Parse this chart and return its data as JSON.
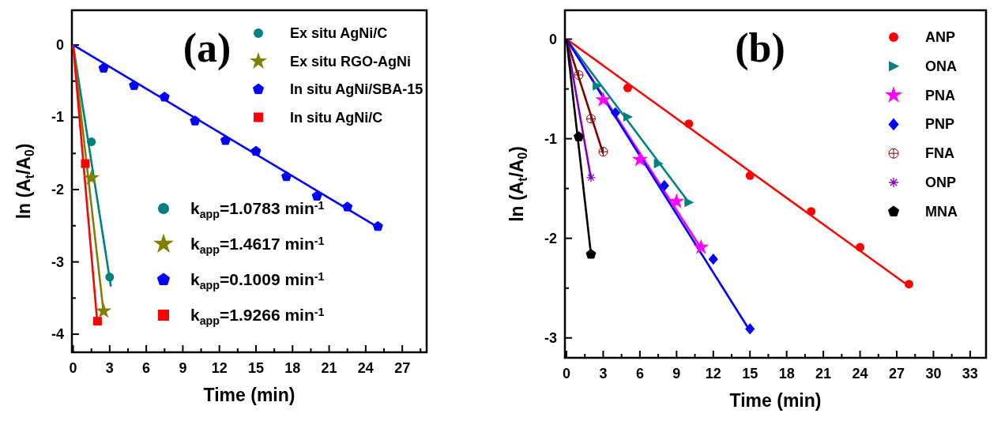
{
  "chart_data": [
    {
      "type": "scatter",
      "xlabel": "Time (min)",
      "ylabel": "ln (A$_{t}$/A$_{0}$)",
      "xlim": [
        -0.1,
        29
      ],
      "ylim": [
        -4.25,
        0.48
      ],
      "xticks": [
        0,
        {
          "value": 1.5,
          "label": null
        },
        3,
        {
          "value": 4.5,
          "label": null
        },
        6,
        {
          "value": 7.5,
          "label": null
        },
        9,
        {
          "value": 10.5,
          "label": null
        },
        12,
        {
          "value": 13.5,
          "label": null
        },
        15,
        {
          "value": 16.5,
          "label": null
        },
        18,
        {
          "value": 19.5,
          "label": null
        },
        21,
        {
          "value": 22.5,
          "label": null
        },
        24,
        {
          "value": 25.5,
          "label": null
        },
        27,
        {
          "value": 28.5,
          "label": null
        }
      ],
      "yticks": [
        0,
        {
          "value": -0.5,
          "label": null
        },
        -1,
        {
          "value": -1.5,
          "label": null
        },
        -2,
        {
          "value": -2.5,
          "label": null
        },
        -3,
        {
          "value": -3.5,
          "label": null
        },
        -4
      ],
      "grid": false,
      "legend": "top right",
      "annotations": [
        "(a)",
        "k$_{app}$=1.0783 min$^{-1}$",
        "k$_{app}$=1.4617 min$^{-1}$",
        "k$_{app}$=0.1009 min$^{-1}$",
        "k$_{app}$=1.9266 min$^{-1}$"
      ],
      "series": [
        {
          "name": "Ex situ AgNi/C",
          "type": "scatter",
          "marker": "circle",
          "color": "#008080",
          "x": [
            1.5,
            3
          ],
          "values": [
            -1.34,
            -3.21
          ]
        },
        {
          "name": "Ex situ RGO-AgNi",
          "type": "scatter",
          "marker": "star",
          "color": "#808000",
          "x": [
            1.5,
            2.5
          ],
          "values": [
            -1.84,
            -3.68
          ]
        },
        {
          "name": "In situ AgNi/SBA-15",
          "type": "scatter",
          "color": "#0000ff",
          "x": [
            2.5,
            5,
            7.5,
            10,
            12.5,
            15,
            17.5,
            20,
            22.5,
            25
          ],
          "values": [
            -0.32,
            -0.56,
            -0.72,
            -1.05,
            -1.32,
            -1.47,
            -1.82,
            -2.09,
            -2.24,
            -2.51
          ]
        },
        {
          "name": "In situ AgNi/C",
          "type": "scatter",
          "marker": "square",
          "color": "#ff0000",
          "x": [
            1,
            2
          ],
          "values": [
            -1.64,
            -3.82
          ]
        },
        {
          "type": "line",
          "line_style": "solid",
          "color": "#008080",
          "x": [
            0,
            3.1
          ],
          "values": [
            0,
            -3.34
          ]
        },
        {
          "type": "line",
          "line_style": "solid",
          "color": "#808000",
          "x": [
            0,
            2.5
          ],
          "values": [
            0,
            -3.7
          ]
        },
        {
          "type": "line",
          "line_style": "solid",
          "color": "#0000ff",
          "x": [
            0,
            25
          ],
          "values": [
            0,
            -2.52
          ]
        },
        {
          "type": "line",
          "line_style": "solid",
          "color": "#ff0000",
          "x": [
            0,
            2
          ],
          "values": [
            0,
            -3.87
          ]
        }
      ]
    },
    {
      "type": "scatter",
      "xlabel": "Time (min)",
      "ylabel": "ln (A$_{t}$/A$_{0}$)",
      "xlim": [
        -0.13,
        34.3
      ],
      "ylim": [
        -3.2,
        0.29
      ],
      "xticks": [
        0,
        {
          "value": 1.5,
          "label": null
        },
        3,
        {
          "value": 4.5,
          "label": null
        },
        6,
        {
          "value": 7.5,
          "label": null
        },
        9,
        {
          "value": 10.5,
          "label": null
        },
        12,
        {
          "value": 13.5,
          "label": null
        },
        15,
        {
          "value": 16.5,
          "label": null
        },
        18,
        {
          "value": 19.5,
          "label": null
        },
        21,
        {
          "value": 22.5,
          "label": null
        },
        24,
        {
          "value": 25.5,
          "label": null
        },
        27,
        {
          "value": 28.5,
          "label": null
        },
        30,
        {
          "value": 31.5,
          "label": null
        },
        33
      ],
      "yticks": [
        0,
        {
          "value": -0.5,
          "label": null
        },
        -1,
        {
          "value": -1.5,
          "label": null
        },
        -2,
        {
          "value": -2.5,
          "label": null
        },
        -3
      ],
      "grid": false,
      "legend": "top right",
      "annotations": [
        "(b)"
      ],
      "series": [
        {
          "name": "ANP",
          "type": "scatter",
          "marker": "circle",
          "color": "#ff0000",
          "x": [
            5,
            10,
            15,
            20,
            24,
            28
          ],
          "values": [
            -0.49,
            -0.85,
            -1.37,
            -1.73,
            -2.09,
            -2.46
          ]
        },
        {
          "name": "ONA",
          "type": "scatter",
          "marker": "triangle",
          "color": "#008080",
          "x": [
            2.5,
            5,
            7.5,
            10
          ],
          "values": [
            -0.47,
            -0.78,
            -1.25,
            -1.64
          ]
        },
        {
          "name": "PNA",
          "type": "scatter",
          "marker": "star",
          "color": "#ff00ff",
          "x": [
            3,
            6,
            9,
            11
          ],
          "values": [
            -0.61,
            -1.21,
            -1.63,
            -2.09
          ]
        },
        {
          "name": "PNP",
          "type": "scatter",
          "marker": "diamond",
          "color": "#0000ff",
          "x": [
            4,
            8,
            12,
            15
          ],
          "values": [
            -0.74,
            -1.47,
            -2.21,
            -2.91
          ]
        },
        {
          "name": "FNA",
          "type": "scatter",
          "marker": "cross",
          "color": "#800000",
          "x": [
            1,
            2,
            3
          ],
          "values": [
            -0.36,
            -0.8,
            -1.13
          ]
        },
        {
          "name": "ONP",
          "type": "scatter",
          "color": "#8000c0",
          "x": [
            2
          ],
          "values": [
            -1.39
          ]
        },
        {
          "name": "MNA",
          "type": "scatter",
          "color": "#000000",
          "x": [
            1,
            2
          ],
          "values": [
            -0.98,
            -2.16
          ]
        },
        {
          "type": "line",
          "line_style": "solid",
          "color": "#ff0000",
          "x": [
            0,
            28
          ],
          "values": [
            0,
            -2.48
          ]
        },
        {
          "type": "line",
          "line_style": "solid",
          "color": "#008080",
          "x": [
            0,
            10
          ],
          "values": [
            0,
            -1.64
          ]
        },
        {
          "type": "line",
          "line_style": "solid",
          "color": "#ff00ff",
          "x": [
            0,
            11
          ],
          "values": [
            0,
            -2.1
          ]
        },
        {
          "type": "line",
          "line_style": "solid",
          "color": "#0000ff",
          "x": [
            0,
            15
          ],
          "values": [
            0,
            -2.93
          ]
        },
        {
          "type": "line",
          "line_style": "solid",
          "color": "#800000",
          "x": [
            0,
            3
          ],
          "values": [
            0,
            -1.15
          ]
        },
        {
          "type": "line",
          "line_style": "solid",
          "color": "#8000c0",
          "x": [
            0,
            2
          ],
          "values": [
            0,
            -1.4
          ]
        },
        {
          "type": "line",
          "line_style": "solid",
          "color": "#000000",
          "x": [
            0,
            2
          ],
          "values": [
            0,
            -2.16
          ]
        }
      ]
    }
  ]
}
